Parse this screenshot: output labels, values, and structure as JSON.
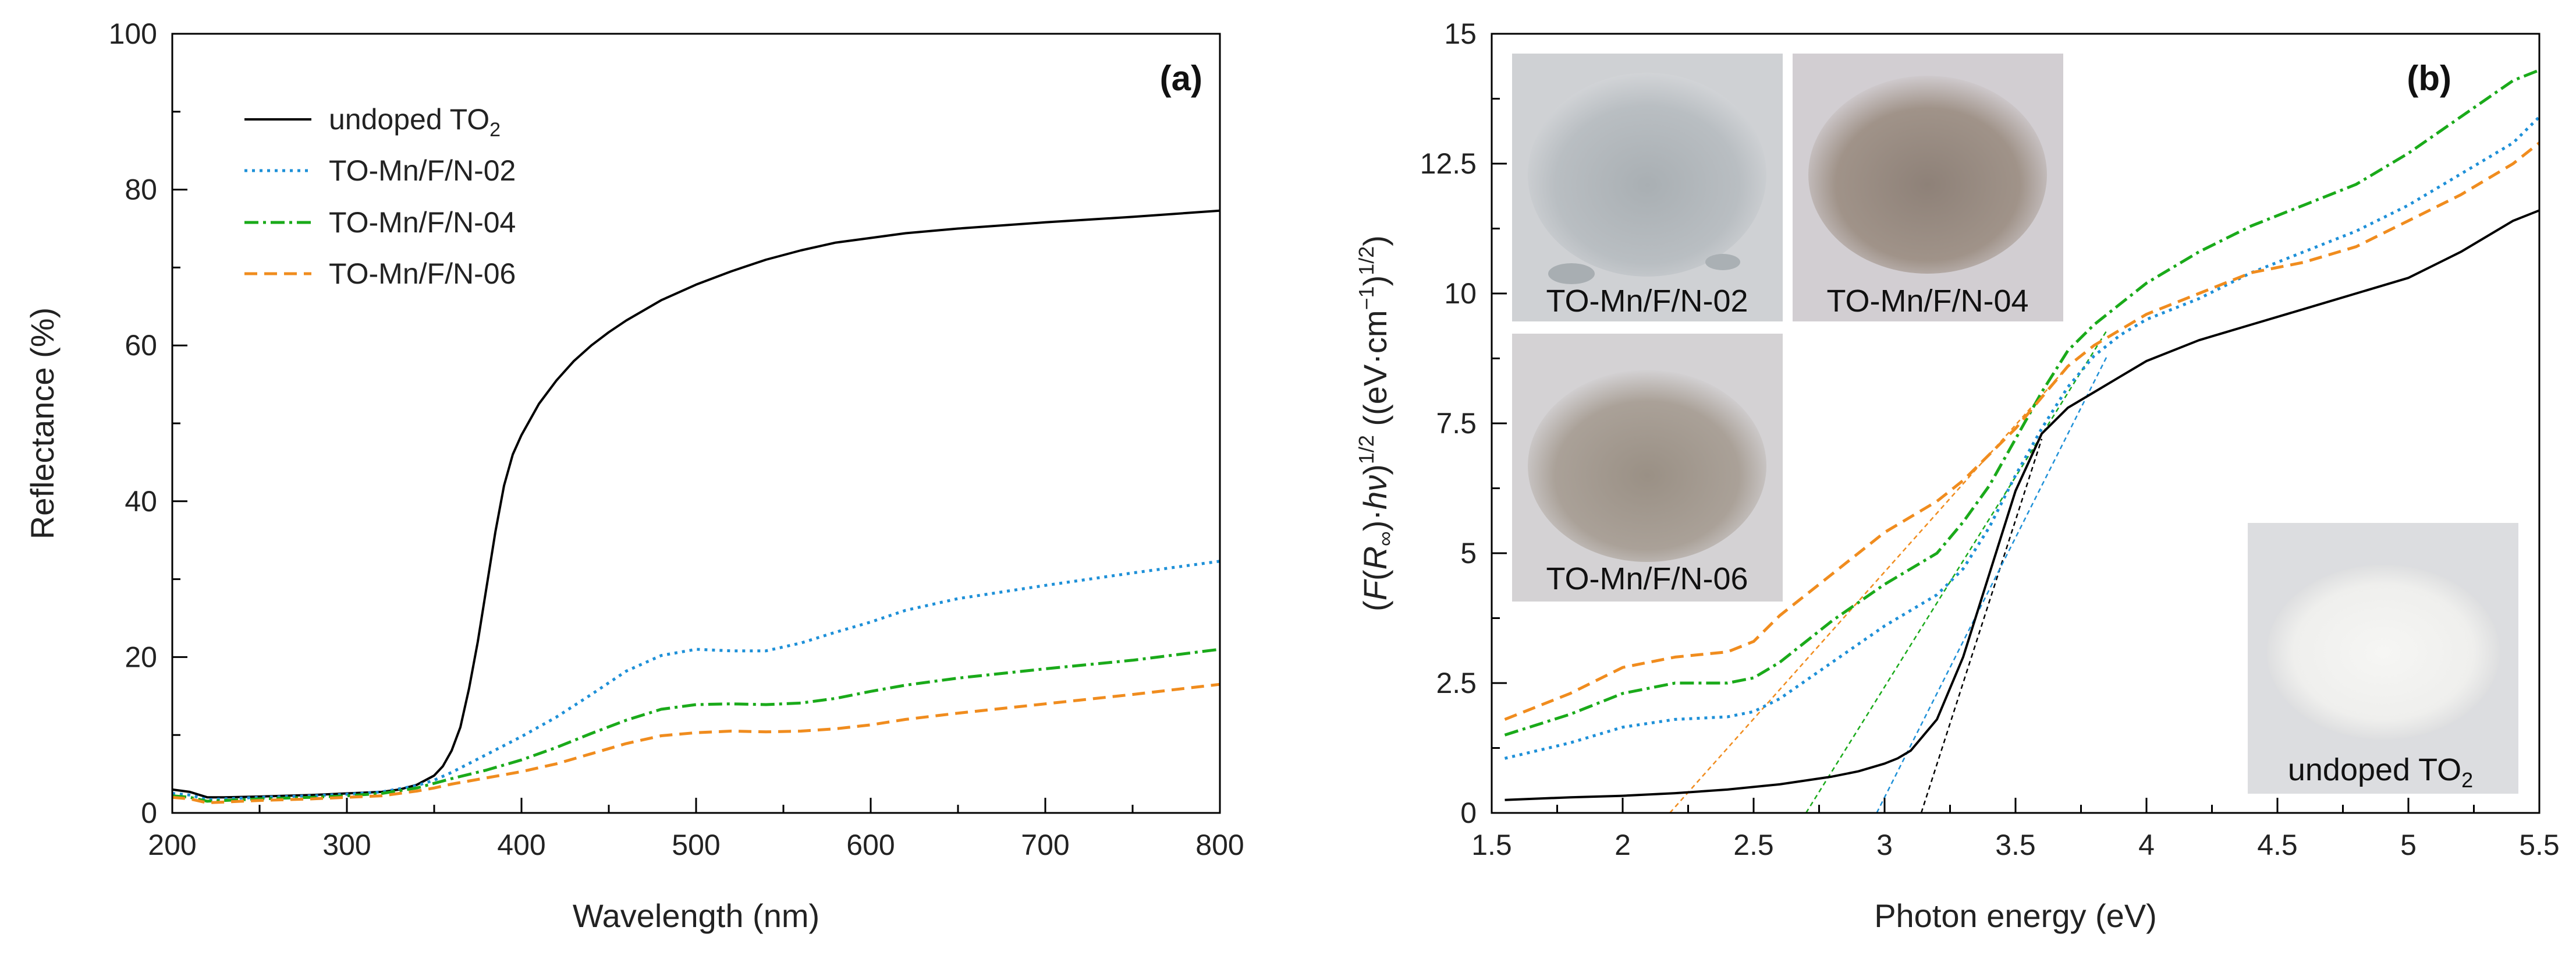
{
  "chart_data": [
    {
      "type": "line",
      "panel_label": "(a)",
      "xlabel": "Wavelength (nm)",
      "ylabel": "Reflectance (%)",
      "xlim": [
        200,
        800
      ],
      "ylim": [
        0,
        100
      ],
      "xticks": [
        200,
        300,
        400,
        500,
        600,
        700,
        800
      ],
      "yticks": [
        0,
        20,
        40,
        60,
        80,
        100
      ],
      "grid": false,
      "legend_position": "top-left",
      "series": [
        {
          "name": "undoped TO",
          "name_subscript": "2",
          "color": "#000000",
          "dash": "solid",
          "x": [
            200,
            210,
            220,
            230,
            250,
            280,
            300,
            320,
            330,
            340,
            350,
            355,
            360,
            365,
            370,
            375,
            380,
            385,
            390,
            395,
            400,
            410,
            420,
            430,
            440,
            450,
            460,
            480,
            500,
            520,
            540,
            560,
            580,
            600,
            620,
            650,
            700,
            750,
            800
          ],
          "y": [
            3.0,
            2.7,
            2.0,
            2.0,
            2.1,
            2.3,
            2.5,
            2.7,
            3.0,
            3.6,
            4.8,
            6.0,
            8.0,
            11.0,
            16.0,
            22.0,
            29.0,
            36.0,
            42.0,
            46.0,
            48.5,
            52.5,
            55.5,
            58.0,
            60.0,
            61.7,
            63.2,
            65.8,
            67.8,
            69.5,
            71.0,
            72.2,
            73.2,
            73.8,
            74.4,
            75.0,
            75.8,
            76.5,
            77.3
          ]
        },
        {
          "name": "TO-Mn/F/N-02",
          "color": "#1e90d8",
          "dash": "dot",
          "x": [
            200,
            210,
            220,
            230,
            250,
            280,
            300,
            320,
            340,
            350,
            360,
            380,
            400,
            420,
            440,
            460,
            480,
            500,
            520,
            540,
            560,
            580,
            600,
            620,
            650,
            700,
            750,
            800
          ],
          "y": [
            2.5,
            2.3,
            1.7,
            1.8,
            2.0,
            2.2,
            2.4,
            2.7,
            3.5,
            4.2,
            5.2,
            7.5,
            9.8,
            12.3,
            15.2,
            18.2,
            20.2,
            21.0,
            20.8,
            20.8,
            21.8,
            23.2,
            24.5,
            26.0,
            27.5,
            29.2,
            30.8,
            32.3
          ]
        },
        {
          "name": "TO-Mn/F/N-04",
          "color": "#1aaa1a",
          "dash": "dashdot",
          "x": [
            200,
            210,
            220,
            230,
            250,
            280,
            300,
            320,
            340,
            350,
            360,
            380,
            400,
            420,
            440,
            460,
            480,
            500,
            520,
            540,
            560,
            580,
            600,
            620,
            650,
            700,
            750,
            800
          ],
          "y": [
            2.2,
            2.0,
            1.5,
            1.6,
            1.8,
            2.0,
            2.2,
            2.5,
            3.2,
            3.8,
            4.4,
            5.5,
            6.8,
            8.4,
            10.2,
            11.9,
            13.3,
            13.9,
            14.0,
            13.9,
            14.1,
            14.7,
            15.6,
            16.4,
            17.3,
            18.5,
            19.6,
            21.0
          ]
        },
        {
          "name": "TO-Mn/F/N-06",
          "color": "#f08c1e",
          "dash": "dash",
          "x": [
            200,
            210,
            220,
            230,
            250,
            280,
            300,
            320,
            340,
            350,
            360,
            380,
            400,
            420,
            440,
            460,
            480,
            500,
            520,
            540,
            560,
            580,
            600,
            620,
            650,
            700,
            750,
            800
          ],
          "y": [
            2.0,
            1.8,
            1.3,
            1.4,
            1.6,
            1.8,
            2.0,
            2.2,
            2.8,
            3.2,
            3.7,
            4.5,
            5.3,
            6.3,
            7.6,
            8.9,
            9.9,
            10.3,
            10.5,
            10.4,
            10.5,
            10.8,
            11.3,
            12.0,
            12.8,
            14.0,
            15.2,
            16.5
          ]
        }
      ]
    },
    {
      "type": "line",
      "panel_label": "(b)",
      "xlabel": "Photon energy (eV)",
      "ylabel_parts": [
        "(",
        "F",
        "(",
        "R",
        "∞",
        ")·",
        "hν",
        ")",
        "1/2",
        " ((eV·cm",
        "−1",
        ")",
        "1/2",
        ")"
      ],
      "xlim": [
        1.5,
        5.5
      ],
      "ylim": [
        0,
        15
      ],
      "xticks": [
        1.5,
        2,
        2.5,
        3,
        3.5,
        4,
        4.5,
        5,
        5.5
      ],
      "xtick_labels": [
        "1.5",
        "2",
        "2.5",
        "3",
        "3.5",
        "4",
        "4.5",
        "5",
        "5.5"
      ],
      "yticks": [
        0,
        2.5,
        5,
        7.5,
        10,
        12.5,
        15
      ],
      "ytick_labels": [
        "0",
        "2.5",
        "5",
        "7.5",
        "10",
        "12.5",
        "15"
      ],
      "grid": false,
      "series": [
        {
          "name": "undoped TO2",
          "color": "#000000",
          "dash": "solid",
          "x": [
            1.55,
            1.8,
            2.0,
            2.2,
            2.4,
            2.6,
            2.8,
            2.9,
            3.0,
            3.05,
            3.1,
            3.2,
            3.3,
            3.4,
            3.5,
            3.6,
            3.7,
            3.8,
            3.9,
            4.0,
            4.2,
            4.4,
            4.6,
            4.8,
            5.0,
            5.2,
            5.4,
            5.5
          ],
          "y": [
            0.25,
            0.3,
            0.33,
            0.38,
            0.45,
            0.55,
            0.7,
            0.8,
            0.95,
            1.05,
            1.2,
            1.8,
            3.0,
            4.6,
            6.2,
            7.3,
            7.8,
            8.1,
            8.4,
            8.7,
            9.1,
            9.4,
            9.7,
            10.0,
            10.3,
            10.8,
            11.4,
            11.6
          ]
        },
        {
          "name": "TO-Mn/F/N-02",
          "color": "#1e90d8",
          "dash": "dot",
          "x": [
            1.55,
            1.8,
            2.0,
            2.2,
            2.4,
            2.5,
            2.6,
            2.8,
            3.0,
            3.2,
            3.3,
            3.4,
            3.5,
            3.6,
            3.7,
            3.8,
            3.9,
            4.0,
            4.2,
            4.4,
            4.6,
            4.8,
            5.0,
            5.2,
            5.4,
            5.5
          ],
          "y": [
            1.05,
            1.35,
            1.65,
            1.8,
            1.85,
            1.95,
            2.2,
            2.9,
            3.6,
            4.2,
            4.7,
            5.5,
            6.5,
            7.4,
            8.2,
            8.8,
            9.2,
            9.5,
            9.9,
            10.4,
            10.8,
            11.2,
            11.7,
            12.3,
            12.9,
            13.4
          ]
        },
        {
          "name": "TO-Mn/F/N-04",
          "color": "#1aaa1a",
          "dash": "dashdot",
          "x": [
            1.55,
            1.8,
            2.0,
            2.2,
            2.4,
            2.5,
            2.6,
            2.8,
            3.0,
            3.2,
            3.3,
            3.4,
            3.5,
            3.6,
            3.7,
            3.8,
            3.9,
            4.0,
            4.2,
            4.4,
            4.6,
            4.8,
            5.0,
            5.2,
            5.4,
            5.5
          ],
          "y": [
            1.5,
            1.9,
            2.3,
            2.5,
            2.5,
            2.6,
            2.9,
            3.7,
            4.4,
            5.0,
            5.6,
            6.3,
            7.2,
            8.1,
            8.9,
            9.4,
            9.8,
            10.2,
            10.8,
            11.3,
            11.7,
            12.1,
            12.7,
            13.4,
            14.1,
            14.3
          ]
        },
        {
          "name": "TO-Mn/F/N-06",
          "color": "#f08c1e",
          "dash": "dash",
          "x": [
            1.55,
            1.8,
            2.0,
            2.2,
            2.4,
            2.5,
            2.6,
            2.8,
            3.0,
            3.2,
            3.3,
            3.4,
            3.5,
            3.6,
            3.7,
            3.8,
            3.9,
            4.0,
            4.2,
            4.4,
            4.6,
            4.8,
            5.0,
            5.2,
            5.4,
            5.5
          ],
          "y": [
            1.8,
            2.3,
            2.8,
            3.0,
            3.1,
            3.3,
            3.8,
            4.6,
            5.4,
            6.0,
            6.4,
            6.9,
            7.4,
            8.0,
            8.6,
            9.0,
            9.3,
            9.6,
            10.0,
            10.4,
            10.6,
            10.9,
            11.4,
            11.9,
            12.5,
            12.9
          ]
        }
      ],
      "fit_lines": [
        {
          "series": "undoped TO2",
          "color": "#000000",
          "x": [
            3.14,
            3.6
          ],
          "y": [
            0,
            7.2
          ]
        },
        {
          "series": "TO-Mn/F/N-02",
          "color": "#1e90d8",
          "x": [
            2.97,
            3.85
          ],
          "y": [
            0,
            8.8
          ]
        },
        {
          "series": "TO-Mn/F/N-04",
          "color": "#1aaa1a",
          "x": [
            2.7,
            3.85
          ],
          "y": [
            0,
            9.3
          ]
        },
        {
          "series": "TO-Mn/F/N-06",
          "color": "#f08c1e",
          "x": [
            2.18,
            3.7
          ],
          "y": [
            0,
            8.6
          ]
        }
      ],
      "inset_photos": [
        {
          "caption": "TO-Mn/F/N-02",
          "tone": "#b8bcbf"
        },
        {
          "caption": "TO-Mn/F/N-04",
          "tone": "#9a8f86"
        },
        {
          "caption": "TO-Mn/F/N-06",
          "tone": "#a59e95"
        },
        {
          "caption": "undoped TO",
          "caption_subscript": "2",
          "tone": "#ececea"
        }
      ]
    }
  ]
}
